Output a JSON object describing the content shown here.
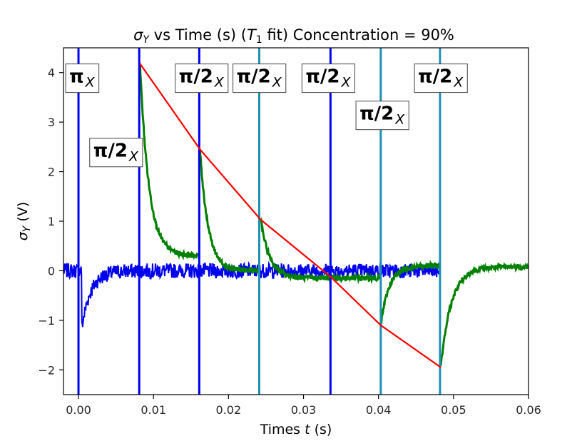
{
  "chart_data": {
    "type": "line",
    "title": "σ_Y vs Time (s) (T_1 fit) Concentration = 90%",
    "title_parts": {
      "sigma": "σ",
      "sigma_sub": "Y",
      "mid": " vs Time (s) (",
      "t": "T",
      "t_sub": "1",
      "end": " fit) Concentration = 90%"
    },
    "xlabel": "Times t (s)",
    "xlabel_parts": {
      "pre": "Times ",
      "var": "t",
      "post": " (s)"
    },
    "ylabel": "σ_Y (V)",
    "ylabel_parts": {
      "sigma": "σ",
      "sub": "Y",
      "post": " (V)"
    },
    "xlim": [
      -0.002,
      0.06
    ],
    "ylim": [
      -2.5,
      4.5
    ],
    "x_ticks": [
      0.0,
      0.01,
      0.02,
      0.03,
      0.04,
      0.05,
      0.06
    ],
    "x_tick_labels": [
      "0.00",
      "0.01",
      "0.02",
      "0.03",
      "0.04",
      "0.05",
      "0.06"
    ],
    "y_ticks": [
      -2,
      -1,
      0,
      1,
      2,
      3,
      4
    ],
    "y_tick_labels": [
      "−2",
      "−1",
      "0",
      "1",
      "2",
      "3",
      "4"
    ],
    "grid": false,
    "colors": {
      "pulse_trace": "#0000ee",
      "pulse_trace_light": "#1f8fb4",
      "fid_trace": "#008000",
      "fit": "#ff0000"
    },
    "pulse_lines": [
      {
        "x": 0.0,
        "color": "blue"
      },
      {
        "x": 0.0081,
        "color": "blue"
      },
      {
        "x": 0.0161,
        "color": "blue"
      },
      {
        "x": 0.0241,
        "color": "teal"
      },
      {
        "x": 0.0336,
        "color": "blue"
      },
      {
        "x": 0.0403,
        "color": "teal"
      },
      {
        "x": 0.0482,
        "color": "teal"
      }
    ],
    "fit_line": {
      "name": "T1 fit",
      "x": [
        0.0082,
        0.0162,
        0.0243,
        0.0336,
        0.0403,
        0.0483
      ],
      "y": [
        4.18,
        2.45,
        1.03,
        -0.12,
        -1.1,
        -1.95
      ]
    },
    "fid_segments": [
      {
        "start": [
          0.0082,
          4.18
        ],
        "end": [
          0.0161,
          0.3
        ],
        "settle": 0.3,
        "tau": 0.0012
      },
      {
        "start": [
          0.0162,
          2.45
        ],
        "end": [
          0.0241,
          0.0
        ],
        "settle": 0.0,
        "tau": 0.0011
      },
      {
        "start": [
          0.0243,
          1.03
        ],
        "end": [
          0.0336,
          -0.15
        ],
        "settle": -0.15,
        "tau": 0.0012
      },
      {
        "start": [
          0.0336,
          -0.12
        ],
        "end": [
          0.0403,
          -0.15
        ],
        "settle": -0.15,
        "tau": 0.0008
      },
      {
        "start": [
          0.0403,
          -1.1
        ],
        "end": [
          0.0482,
          0.1
        ],
        "settle": 0.1,
        "tau": 0.0011
      },
      {
        "start": [
          0.0483,
          -1.95
        ],
        "end": [
          0.06,
          0.08
        ],
        "settle": 0.08,
        "tau": 0.0014
      }
    ],
    "baseline": {
      "x_range": [
        -0.002,
        0.0482
      ],
      "center": 0.0,
      "noise_amplitude": 0.15
    },
    "initial_dip": {
      "x": 0.0004,
      "y": -1.2,
      "tau": 0.0012
    },
    "annotations": [
      {
        "text": "π",
        "sub": "X",
        "x": -0.0018,
        "y": 3.8
      },
      {
        "text": "π/2",
        "sub": "X",
        "x": 0.0014,
        "y": 2.3
      },
      {
        "text": "π/2",
        "sub": "X",
        "x": 0.0128,
        "y": 3.8
      },
      {
        "text": "π/2",
        "sub": "X",
        "x": 0.0205,
        "y": 3.8
      },
      {
        "text": "π/2",
        "sub": "X",
        "x": 0.0297,
        "y": 3.8
      },
      {
        "text": "π/2",
        "sub": "X",
        "x": 0.0369,
        "y": 3.05
      },
      {
        "text": "π/2",
        "sub": "X",
        "x": 0.0447,
        "y": 3.8
      }
    ]
  }
}
